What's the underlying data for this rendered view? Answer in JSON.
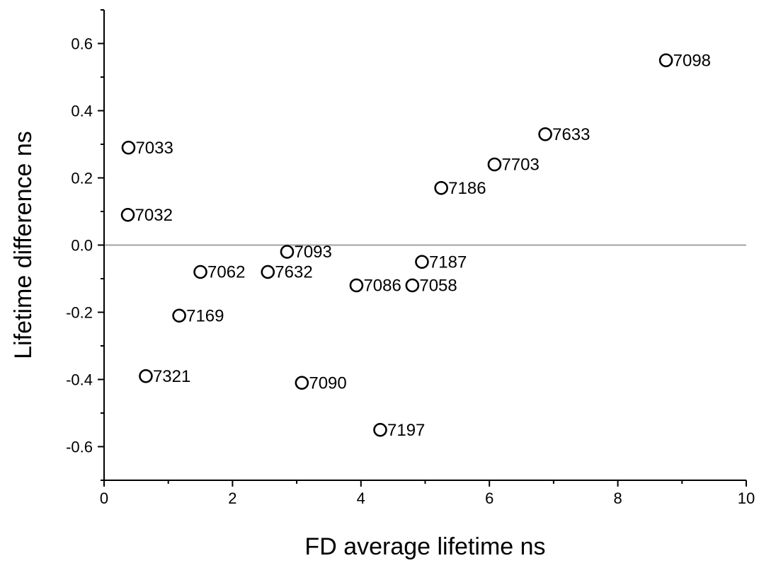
{
  "chart_data": {
    "type": "scatter",
    "title": "",
    "xlabel": "FD average lifetime ns",
    "ylabel": "Lifetime difference ns",
    "xlim": [
      0,
      10
    ],
    "ylim": [
      -0.7,
      0.7
    ],
    "x_ticks": [
      0,
      2,
      4,
      6,
      8,
      10
    ],
    "y_ticks": [
      -0.6,
      -0.4,
      -0.2,
      0.0,
      0.2,
      0.4,
      0.6
    ],
    "y_tick_labels": [
      "-0.6",
      "-0.4",
      "-0.2",
      "0.0",
      "0.2",
      "0.4",
      "0.6"
    ],
    "reference_line_y": 0,
    "grid": false,
    "legend": "none",
    "marker": "open-circle",
    "points": [
      {
        "label": "7098",
        "x": 8.75,
        "y": 0.55
      },
      {
        "label": "7633",
        "x": 6.87,
        "y": 0.33
      },
      {
        "label": "7703",
        "x": 6.08,
        "y": 0.24
      },
      {
        "label": "7186",
        "x": 5.25,
        "y": 0.17
      },
      {
        "label": "7033",
        "x": 0.38,
        "y": 0.29
      },
      {
        "label": "7032",
        "x": 0.37,
        "y": 0.09
      },
      {
        "label": "7093",
        "x": 2.85,
        "y": -0.02
      },
      {
        "label": "7187",
        "x": 4.95,
        "y": -0.05
      },
      {
        "label": "7062",
        "x": 1.5,
        "y": -0.08
      },
      {
        "label": "7632",
        "x": 2.55,
        "y": -0.08
      },
      {
        "label": "7086",
        "x": 3.93,
        "y": -0.12
      },
      {
        "label": "7058",
        "x": 4.8,
        "y": -0.12
      },
      {
        "label": "7169",
        "x": 1.17,
        "y": -0.21
      },
      {
        "label": "7321",
        "x": 0.65,
        "y": -0.39
      },
      {
        "label": "7090",
        "x": 3.08,
        "y": -0.41
      },
      {
        "label": "7197",
        "x": 4.3,
        "y": -0.55
      }
    ]
  }
}
